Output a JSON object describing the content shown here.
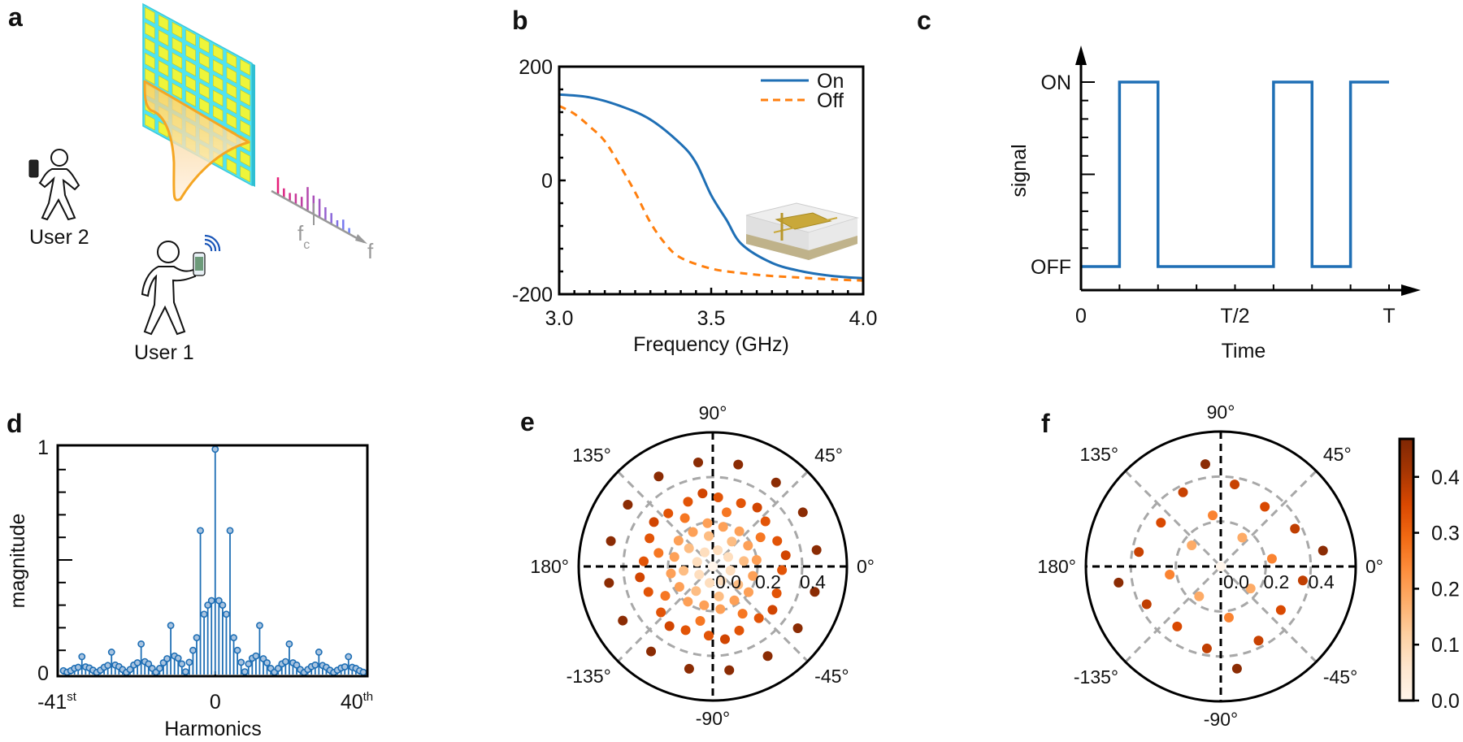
{
  "panel_labels": {
    "a": "a",
    "b": "b",
    "c": "c",
    "d": "d",
    "e": "e",
    "f": "f"
  },
  "panel_a": {
    "user1_label": "User 1",
    "user2_label": "User 2",
    "carrier_label": "f",
    "carrier_subscript": "c",
    "freq_axis_label": "f",
    "colors": {
      "metasurface": "#4fe3f2",
      "cell": "#eef53a",
      "beam": "#f5a623"
    }
  },
  "chart_data": [
    {
      "panel": "b",
      "type": "line",
      "xlabel": "Frequency (GHz)",
      "ylabel": "",
      "xlim": [
        3.0,
        4.0
      ],
      "ylim": [
        -200,
        200
      ],
      "x_ticks": [
        "3.0",
        "3.5",
        "4.0"
      ],
      "y_ticks": [
        "200",
        "0",
        "-200"
      ],
      "legend_position": "top-right",
      "series": [
        {
          "name": "On",
          "color": "#1f6fb5",
          "style": "solid",
          "x": [
            3.0,
            3.1,
            3.2,
            3.3,
            3.4,
            3.45,
            3.5,
            3.55,
            3.6,
            3.7,
            3.8,
            3.9,
            4.0
          ],
          "y": [
            151,
            146,
            131,
            107,
            64,
            31,
            -26,
            -69,
            -112,
            -145,
            -160,
            -168,
            -172
          ]
        },
        {
          "name": "Off",
          "color": "#ff7f0e",
          "style": "dashed",
          "x": [
            3.0,
            3.05,
            3.1,
            3.15,
            3.2,
            3.25,
            3.3,
            3.35,
            3.4,
            3.5,
            3.6,
            3.7,
            3.8,
            3.9,
            4.0
          ],
          "y": [
            131,
            117,
            95,
            69,
            26,
            -21,
            -74,
            -112,
            -136,
            -155,
            -163,
            -168,
            -171,
            -174,
            -176
          ]
        }
      ]
    },
    {
      "panel": "c",
      "type": "line",
      "xlabel": "Time",
      "ylabel": "signal",
      "x_ticks": [
        "0",
        "T/2",
        "T"
      ],
      "y_ticks": [
        "ON",
        "OFF"
      ],
      "step_fraction_of_T": [
        0,
        0.125,
        0.25,
        0.375,
        0.5,
        0.625,
        0.75,
        0.875,
        1.0
      ],
      "states": [
        "OFF",
        "ON",
        "OFF",
        "OFF",
        "OFF",
        "ON",
        "OFF",
        "ON"
      ],
      "color": "#1f6fb5"
    },
    {
      "panel": "d",
      "type": "stem",
      "xlabel": "Harmonics",
      "ylabel": "magnitude",
      "x_range": [
        -41,
        40
      ],
      "ylim": [
        0,
        1
      ],
      "x_ticks": [
        {
          "text": "-41",
          "sup": "st"
        },
        {
          "text": "0",
          "sup": ""
        },
        {
          "text": "40",
          "sup": "th"
        }
      ],
      "y_ticks": [
        "1",
        "0"
      ],
      "color": "#1f6fb5",
      "values": [
        0.01,
        0.003,
        0.01,
        0.02,
        0.025,
        0.072,
        0.027,
        0.022,
        0.012,
        0.002,
        0.012,
        0.025,
        0.033,
        0.092,
        0.035,
        0.028,
        0.015,
        0.002,
        0.015,
        0.035,
        0.045,
        0.128,
        0.05,
        0.04,
        0.02,
        0.003,
        0.02,
        0.045,
        0.063,
        0.21,
        0.075,
        0.065,
        0.04,
        0.005,
        0.047,
        0.1,
        0.156,
        0.63,
        0.26,
        0.3,
        0.32,
        0.99,
        0.32,
        0.3,
        0.26,
        0.63,
        0.156,
        0.1,
        0.047,
        0.005,
        0.04,
        0.065,
        0.075,
        0.21,
        0.063,
        0.045,
        0.02,
        0.003,
        0.02,
        0.04,
        0.05,
        0.128,
        0.045,
        0.035,
        0.015,
        0.002,
        0.015,
        0.028,
        0.035,
        0.092,
        0.033,
        0.025,
        0.012,
        0.002,
        0.012,
        0.022,
        0.027,
        0.072,
        0.025,
        0.02,
        0.01,
        0.003
      ]
    },
    {
      "panel": "e",
      "type": "scatter",
      "projection": "polar",
      "rlim": [
        0,
        0.6
      ],
      "r_ticks": [
        "0.0",
        "0.2",
        "0.4"
      ],
      "r_tick_values": [
        0.0,
        0.2,
        0.4
      ],
      "angle_labels": [
        {
          "angle": 0,
          "text": "0°"
        },
        {
          "angle": 45,
          "text": "45°"
        },
        {
          "angle": 90,
          "text": "90°"
        },
        {
          "angle": 135,
          "text": "135°"
        },
        {
          "angle": 180,
          "text": "180°"
        },
        {
          "angle": -135,
          "text": "-135°"
        },
        {
          "angle": -90,
          "text": "-90°"
        },
        {
          "angle": -45,
          "text": "-45°"
        }
      ],
      "columns": [
        "r",
        "theta_deg",
        "value"
      ],
      "points": [
        [
          0.47,
          9,
          0.45
        ],
        [
          0.47,
          31,
          0.45
        ],
        [
          0.47,
          53,
          0.45
        ],
        [
          0.47,
          76,
          0.45
        ],
        [
          0.47,
          98,
          0.45
        ],
        [
          0.47,
          121,
          0.45
        ],
        [
          0.47,
          144,
          0.45
        ],
        [
          0.47,
          166,
          0.45
        ],
        [
          0.47,
          189,
          0.45
        ],
        [
          0.47,
          211,
          0.45
        ],
        [
          0.47,
          234,
          0.45
        ],
        [
          0.47,
          257,
          0.45
        ],
        [
          0.47,
          279,
          0.45
        ],
        [
          0.47,
          301.5,
          0.45
        ],
        [
          0.47,
          324,
          0.45
        ],
        [
          0.47,
          346,
          0.45
        ],
        [
          0.33,
          8.7,
          0.36
        ],
        [
          0.33,
          53,
          0.36
        ],
        [
          0.33,
          98,
          0.36
        ],
        [
          0.33,
          143,
          0.36
        ],
        [
          0.33,
          188.5,
          0.36
        ],
        [
          0.33,
          234,
          0.36
        ],
        [
          0.33,
          279.5,
          0.36
        ],
        [
          0.33,
          324,
          0.36
        ],
        [
          0.31,
          21.6,
          0.33
        ],
        [
          0.31,
          40.6,
          0.33
        ],
        [
          0.31,
          66,
          0.33
        ],
        [
          0.31,
          85.5,
          0.33
        ],
        [
          0.31,
          111,
          0.33
        ],
        [
          0.31,
          130,
          0.33
        ],
        [
          0.31,
          156,
          0.33
        ],
        [
          0.31,
          175.7,
          0.33
        ],
        [
          0.31,
          201.6,
          0.33
        ],
        [
          0.31,
          221.5,
          0.33
        ],
        [
          0.31,
          246.9,
          0.33
        ],
        [
          0.31,
          266.6,
          0.33
        ],
        [
          0.31,
          292.4,
          0.33
        ],
        [
          0.31,
          311.7,
          0.33
        ],
        [
          0.31,
          337.2,
          0.33
        ],
        [
          0.31,
          357,
          0.33
        ],
        [
          0.25,
          31.4,
          0.27
        ],
        [
          0.25,
          75.7,
          0.27
        ],
        [
          0.25,
          120,
          0.27
        ],
        [
          0.25,
          166,
          0.27
        ],
        [
          0.25,
          211.7,
          0.27
        ],
        [
          0.25,
          257,
          0.27
        ],
        [
          0.25,
          302.2,
          0.27
        ],
        [
          0.195,
          97,
          0.2
        ],
        [
          0.183,
          75.4,
          0.2
        ],
        [
          0.178,
          120,
          0.2
        ],
        [
          0.197,
          53,
          0.2
        ],
        [
          0.192,
          143,
          0.2
        ],
        [
          0.183,
          30.6,
          0.2
        ],
        [
          0.177,
          166,
          0.2
        ],
        [
          0.198,
          8.4,
          0.2
        ],
        [
          0.19,
          189.5,
          0.2
        ],
        [
          0.184,
          346.7,
          0.2
        ],
        [
          0.175,
          211.4,
          0.2
        ],
        [
          0.197,
          324.3,
          0.2
        ],
        [
          0.18,
          302.4,
          0.2
        ],
        [
          0.193,
          234.7,
          0.2
        ],
        [
          0.178,
          257.4,
          0.2
        ],
        [
          0.194,
          280,
          0.2
        ],
        [
          0.137,
          97.6,
          0.15
        ],
        [
          0.14,
          52.7,
          0.15
        ],
        [
          0.134,
          142.7,
          0.15
        ],
        [
          0.141,
          9.9,
          0.15
        ],
        [
          0.132,
          188.4,
          0.15
        ],
        [
          0.133,
          235.7,
          0.15
        ],
        [
          0.137,
          281.7,
          0.15
        ],
        [
          0.14,
          324.4,
          0.15
        ],
        [
          0.073,
          120,
          0.08
        ],
        [
          0.076,
          73,
          0.08
        ],
        [
          0.073,
          163.7,
          0.08
        ],
        [
          0.081,
          31.5,
          0.08
        ],
        [
          0.081,
          347,
          0.08
        ],
        [
          0.071,
          211,
          0.08
        ],
        [
          0.075,
          259,
          0.08
        ],
        [
          0.075,
          302,
          0.08
        ],
        [
          0,
          0,
          0
        ]
      ]
    },
    {
      "panel": "f",
      "type": "scatter",
      "projection": "polar",
      "rlim": [
        0,
        0.6
      ],
      "r_ticks": [
        "0.0",
        "0.2",
        "0.4"
      ],
      "r_tick_values": [
        0.0,
        0.2,
        0.4
      ],
      "angle_labels": [
        {
          "angle": 0,
          "text": "0°"
        },
        {
          "angle": 45,
          "text": "45°"
        },
        {
          "angle": 90,
          "text": "90°"
        },
        {
          "angle": 135,
          "text": "135°"
        },
        {
          "angle": 180,
          "text": "180°"
        },
        {
          "angle": -135,
          "text": "-135°"
        },
        {
          "angle": -90,
          "text": "-90°"
        },
        {
          "angle": -45,
          "text": "-45°"
        }
      ],
      "columns": [
        "r",
        "theta_deg",
        "value"
      ],
      "points": [
        [
          0.46,
          98.6,
          0.45
        ],
        [
          0.37,
          80.4,
          0.37
        ],
        [
          0.37,
          117,
          0.37
        ],
        [
          0.33,
          53.6,
          0.35
        ],
        [
          0.23,
          99,
          0.25
        ],
        [
          0.37,
          27,
          0.38
        ],
        [
          0.33,
          143.8,
          0.35
        ],
        [
          0.16,
          53.4,
          0.18
        ],
        [
          0.46,
          8.8,
          0.45
        ],
        [
          0.16,
          144,
          0.18
        ],
        [
          0.23,
          8.6,
          0.25
        ],
        [
          0.37,
          170,
          0.37
        ],
        [
          0.23,
          189,
          0.25
        ],
        [
          0.37,
          350.3,
          0.38
        ],
        [
          0.46,
          189,
          0.45
        ],
        [
          0.165,
          323.5,
          0.18
        ],
        [
          0.164,
          234,
          0.18
        ],
        [
          0.37,
          207,
          0.38
        ],
        [
          0.33,
          324,
          0.35
        ],
        [
          0.23,
          279,
          0.25
        ],
        [
          0.33,
          234,
          0.35
        ],
        [
          0.37,
          297,
          0.37
        ],
        [
          0.37,
          260.4,
          0.38
        ],
        [
          0.46,
          279,
          0.45
        ],
        [
          0,
          0,
          0
        ]
      ],
      "colorbar": {
        "range": [
          0.0,
          0.468
        ],
        "ticks": [
          "0.0",
          "0.1",
          "0.2",
          "0.3",
          "0.4"
        ],
        "tick_values": [
          0.0,
          0.1,
          0.2,
          0.3,
          0.4
        ],
        "colormap": [
          "#fff5eb",
          "#fee6ce",
          "#fdd0a2",
          "#fdae6b",
          "#fd8d3c",
          "#f16913",
          "#d94801",
          "#a63603",
          "#7f2704"
        ]
      }
    }
  ]
}
